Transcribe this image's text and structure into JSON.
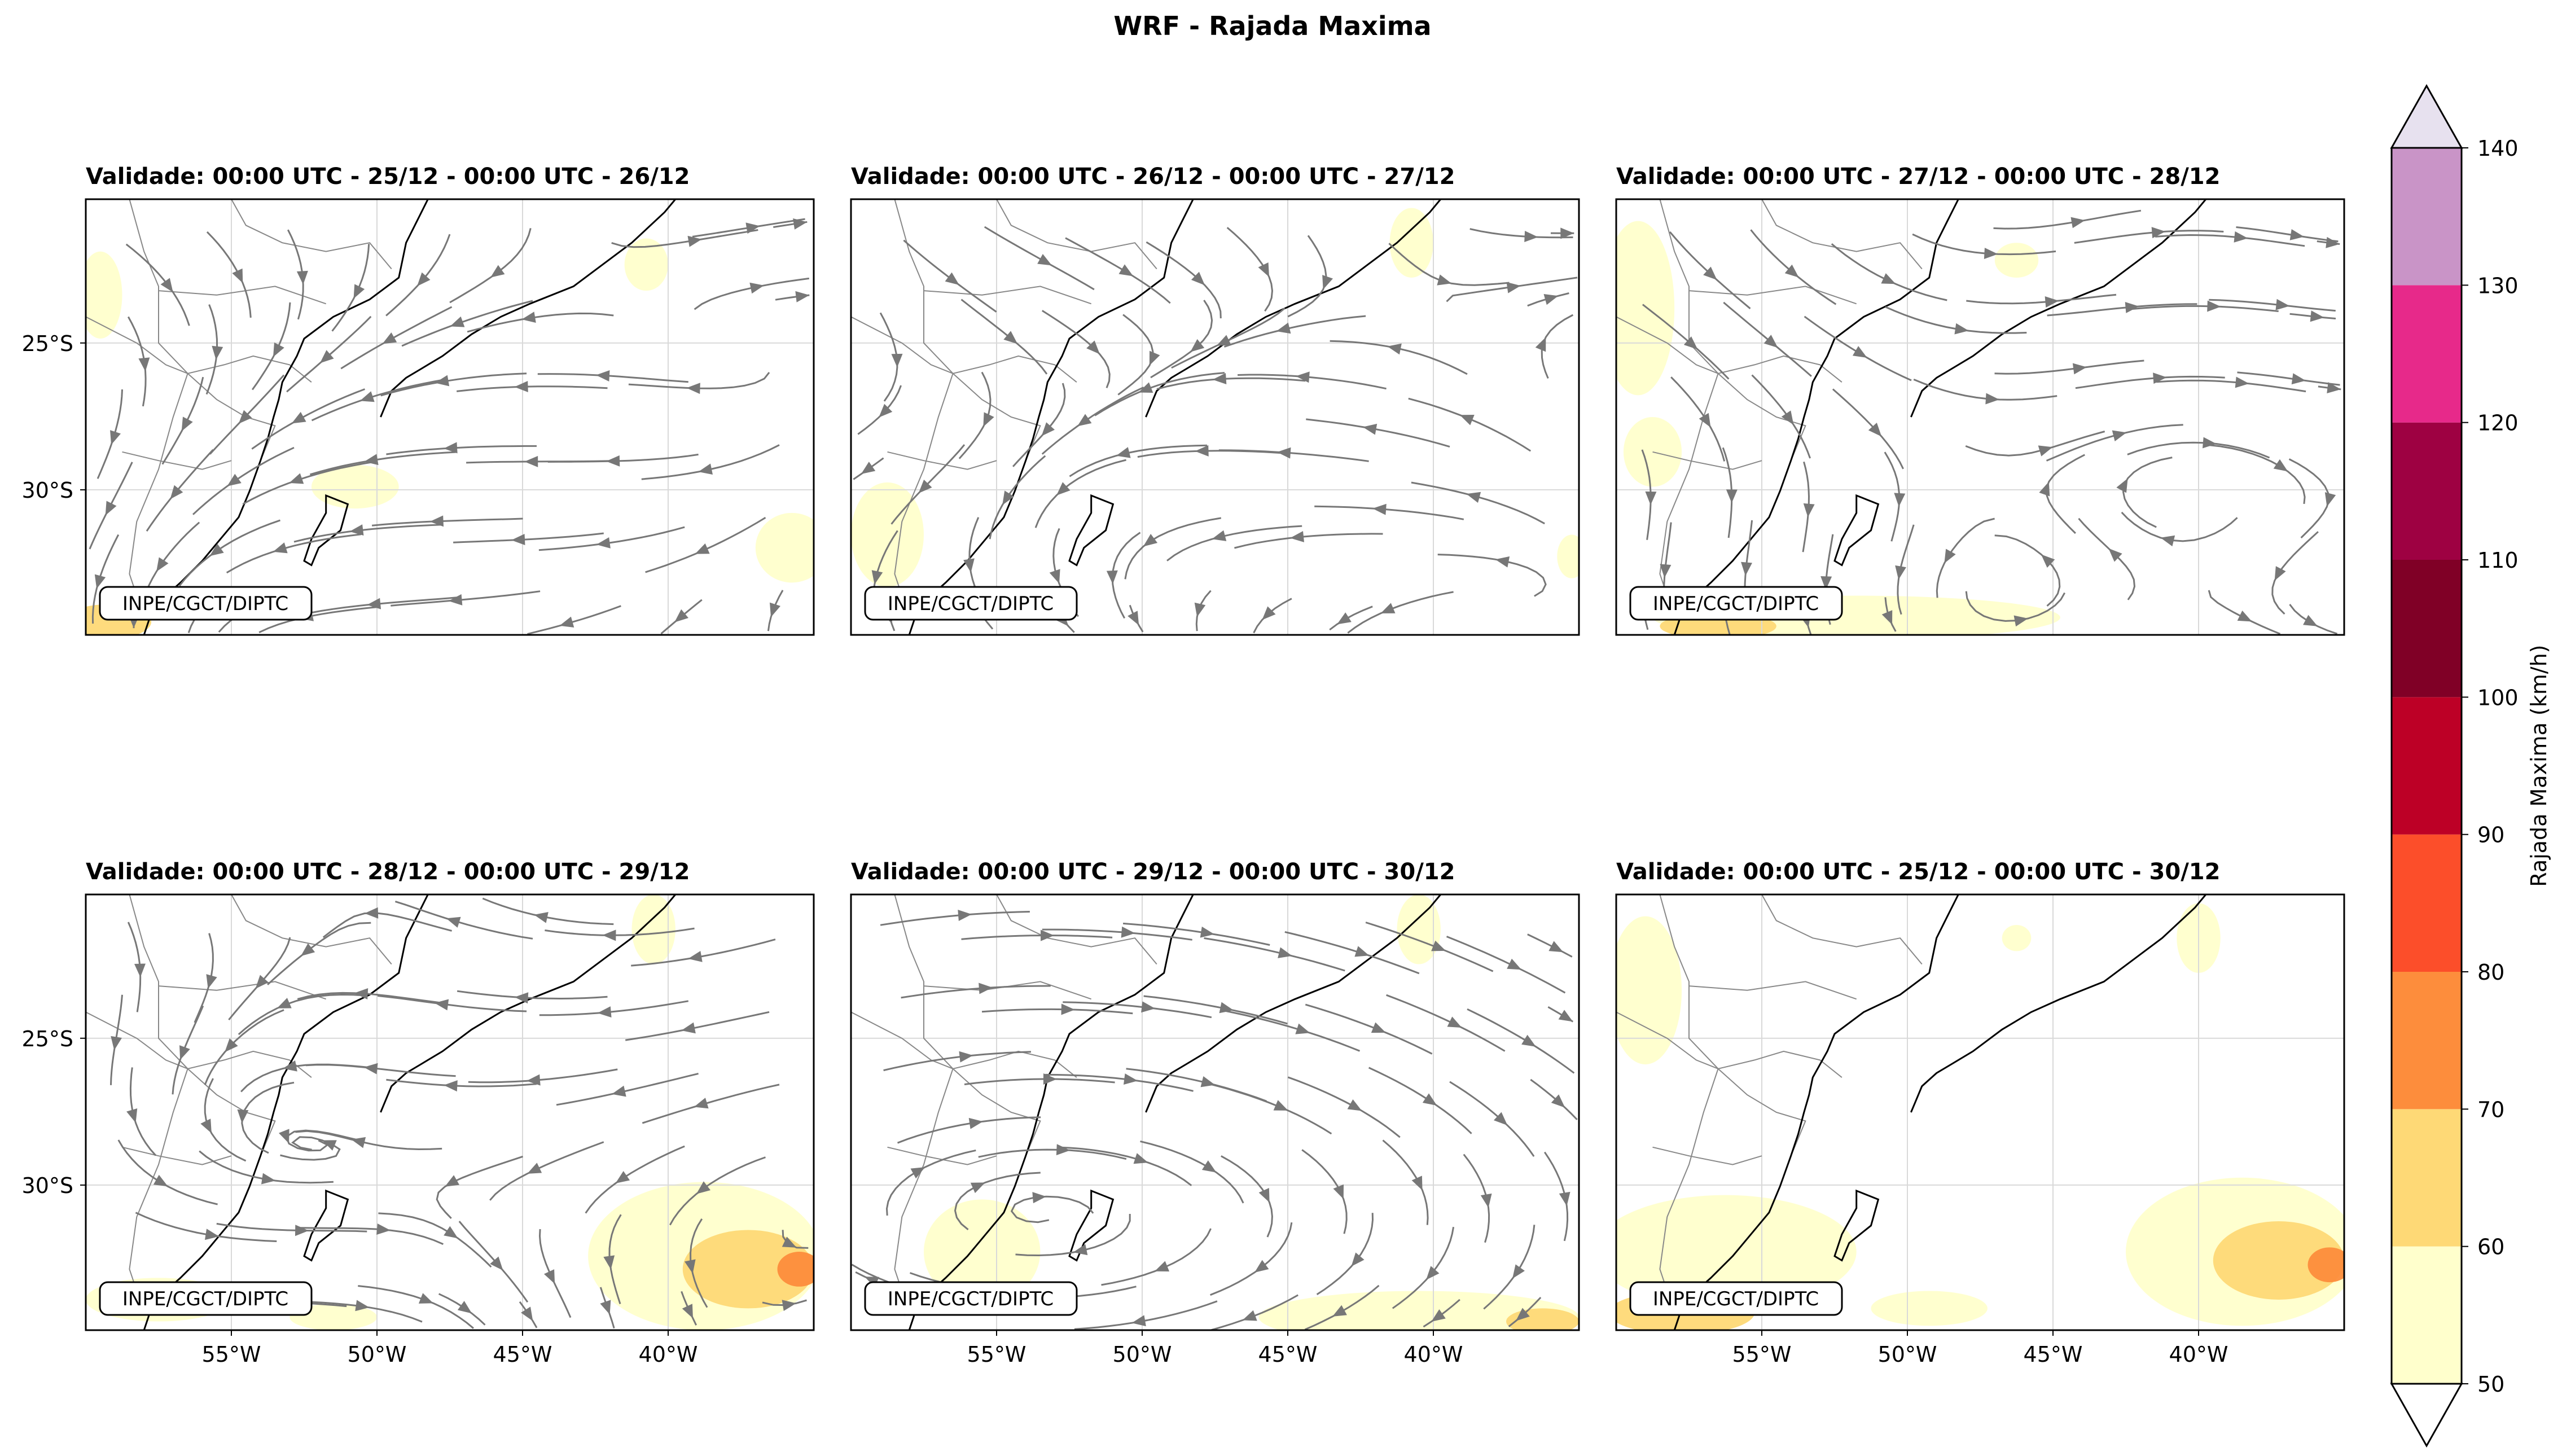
{
  "title": "WRF - Rajada Maxima",
  "panels": [
    {
      "title": "Validade: 00:00 UTC - 25/12 - 00:00 UTC - 26/12",
      "label": "INPE/CGCT/DIPTC",
      "streamlines": true
    },
    {
      "title": "Validade: 00:00 UTC - 26/12 - 00:00 UTC - 27/12",
      "label": "INPE/CGCT/DIPTC",
      "streamlines": true
    },
    {
      "title": "Validade: 00:00 UTC - 27/12 - 00:00 UTC - 28/12",
      "label": "INPE/CGCT/DIPTC",
      "streamlines": true
    },
    {
      "title": "Validade: 00:00 UTC - 28/12 - 00:00 UTC - 29/12",
      "label": "INPE/CGCT/DIPTC",
      "streamlines": true
    },
    {
      "title": "Validade: 00:00 UTC - 29/12 - 00:00 UTC - 30/12",
      "label": "INPE/CGCT/DIPTC",
      "streamlines": true
    },
    {
      "title": "Validade: 00:00 UTC - 25/12 - 00:00 UTC - 30/12",
      "label": "INPE/CGCT/DIPTC",
      "streamlines": false
    }
  ],
  "lat_ticks": [
    "25°S",
    "30°S"
  ],
  "lon_ticks": [
    "55°W",
    "50°W",
    "45°W",
    "40°W"
  ],
  "colorbar": {
    "label": "Rajada Maxima (km/h)",
    "ticks": [
      "50",
      "60",
      "70",
      "80",
      "90",
      "100",
      "110",
      "120",
      "130",
      "140"
    ],
    "colors": [
      "#ffffcc",
      "#fed976",
      "#fd8d3c",
      "#fc4e2a",
      "#bd0026",
      "#800026",
      "#9e0142",
      "#e7298a",
      "#c994c7"
    ],
    "under_color": "#ffffff",
    "over_color": "#e7e1ef"
  },
  "colors": {
    "streamline": "#777777",
    "coast": "#000000",
    "border": "#888888",
    "grid": "#d9d9d9"
  }
}
